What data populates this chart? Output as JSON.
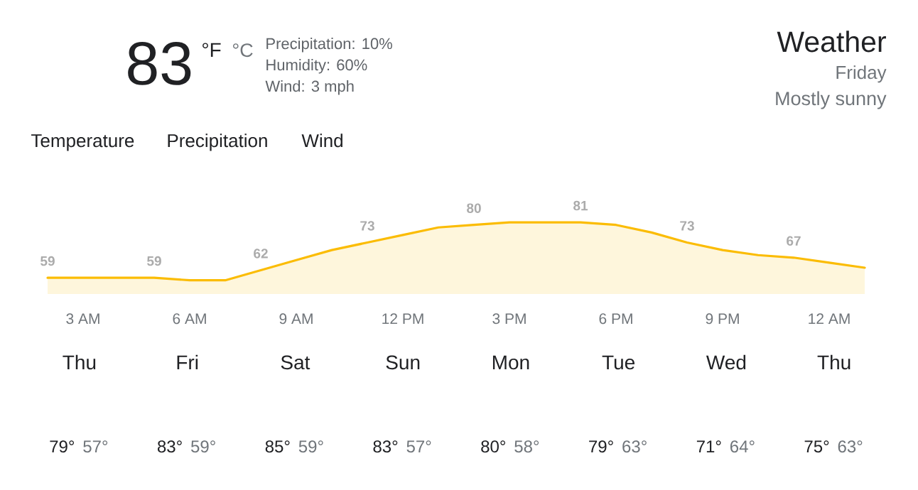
{
  "chart_data": [
    {
      "type": "other",
      "title": "Weather",
      "subtitle": "Friday",
      "annotations": [
        "83",
        "°F",
        "°C",
        "Precipitation: 10%",
        "Humidity: 60%",
        "Wind: 3 mph",
        "Mostly sunny"
      ]
    },
    {
      "type": "area",
      "annotations": [
        "Temperature",
        "Precipitation",
        "Wind"
      ],
      "categories": [
        null,
        "3 AM",
        null,
        null,
        "6 AM",
        null,
        null,
        "9 AM",
        null,
        null,
        "12 PM",
        null,
        null,
        "3 PM",
        null,
        null,
        "6 PM",
        null,
        null,
        "9 PM",
        null,
        null,
        "12 AM",
        null
      ],
      "values": [
        59,
        59,
        59,
        59,
        58,
        58,
        62,
        66,
        70,
        73,
        76,
        79,
        80,
        81,
        81,
        81,
        80,
        77,
        73,
        70,
        68,
        67,
        65,
        63
      ],
      "value_labels": [
        "59",
        null,
        null,
        "59",
        null,
        null,
        "62",
        null,
        null,
        "73",
        null,
        null,
        "80",
        null,
        null,
        "81",
        null,
        null,
        "73",
        null,
        null,
        "67",
        null,
        null
      ],
      "color": "#fbbc04"
    },
    {
      "type": "other",
      "categories": [
        "Thu",
        "Fri",
        "Sat",
        "Sun",
        "Mon",
        "Tue",
        "Wed",
        "Thu"
      ],
      "annotations": [
        "79°",
        "57°",
        "83°",
        "59°",
        "85°",
        "59°",
        "83°",
        "57°",
        "80°",
        "58°",
        "79°",
        "63°",
        "71°",
        "64°",
        "75°",
        "63°"
      ]
    }
  ]
}
